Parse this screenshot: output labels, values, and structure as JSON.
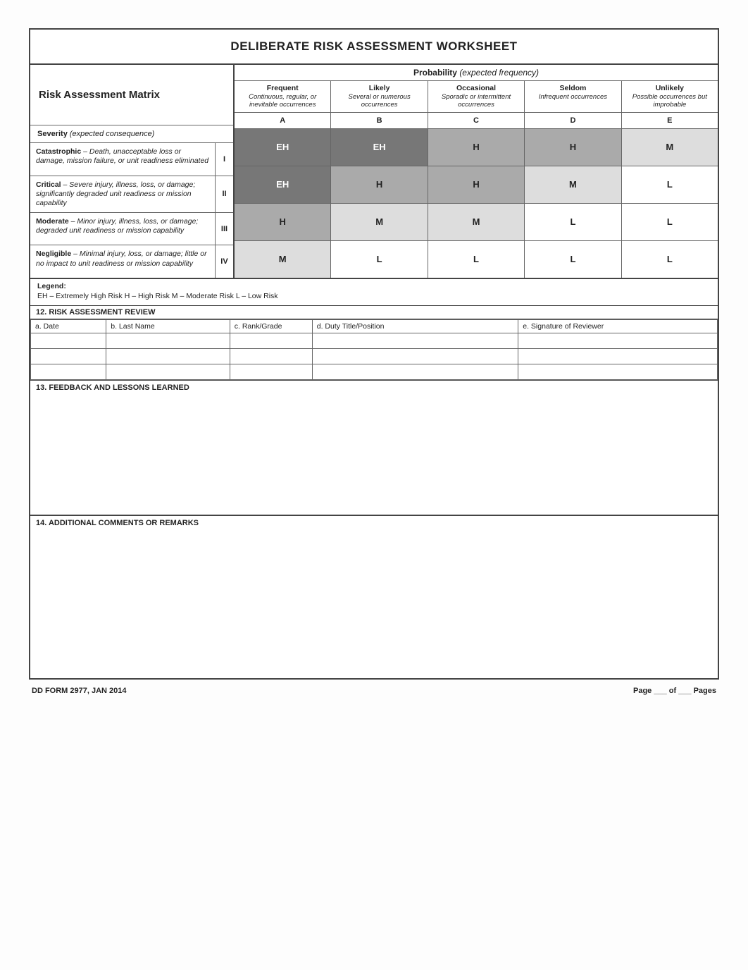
{
  "title": "DELIBERATE RISK ASSESSMENT WORKSHEET",
  "matrix": {
    "heading": "Risk Assessment Matrix",
    "probability": {
      "label": "Probability",
      "sub": "(expected frequency)",
      "columns": [
        {
          "label": "Frequent",
          "code": "A",
          "desc": "Continuous, regular, or inevitable occurrences"
        },
        {
          "label": "Likely",
          "code": "B",
          "desc": "Several or numerous occurrences"
        },
        {
          "label": "Occasional",
          "code": "C",
          "desc": "Sporadic or intermittent occurrences"
        },
        {
          "label": "Seldom",
          "code": "D",
          "desc": "Infrequent occurrences"
        },
        {
          "label": "Unlikely",
          "code": "E",
          "desc": "Possible occurrences but improbable"
        }
      ]
    },
    "severity": {
      "label": "Severity",
      "sub": "(expected consequence)",
      "rows": [
        {
          "label": "Catastrophic",
          "code": "I",
          "desc": "Death, unacceptable loss or damage, mission failure, or unit readiness eliminated"
        },
        {
          "label": "Critical",
          "code": "II",
          "desc": "Severe injury, illness, loss, or damage; significantly degraded unit readiness or mission capability"
        },
        {
          "label": "Moderate",
          "code": "III",
          "desc": "Minor injury, illness, loss, or damage; degraded unit readiness or mission capability"
        },
        {
          "label": "Negligible",
          "code": "IV",
          "desc": "Minimal injury, loss, or damage; little or no impact to unit readiness or mission capability"
        }
      ]
    },
    "grid": [
      [
        "EH",
        "EH",
        "H",
        "H",
        "M"
      ],
      [
        "EH",
        "H",
        "H",
        "M",
        "L"
      ],
      [
        "H",
        "M",
        "M",
        "L",
        "L"
      ],
      [
        "M",
        "L",
        "L",
        "L",
        "L"
      ]
    ],
    "levels": {
      "EH": "EH",
      "H": "H",
      "M": "M",
      "L": "L"
    }
  },
  "legend": {
    "header": "Legend:",
    "line": "EH – Extremely High Risk    H – High Risk    M – Moderate Risk    L – Low Risk"
  },
  "review": {
    "title": "12. RISK ASSESSMENT REVIEW",
    "columns": [
      "a. Date",
      "b. Last Name",
      "c. Rank/Grade",
      "d. Duty Title/Position",
      "e. Signature of Reviewer"
    ],
    "blank_rows": 3
  },
  "feedback": {
    "title": "13. FEEDBACK AND LESSONS LEARNED"
  },
  "remarks": {
    "title": "14. ADDITIONAL COMMENTS OR REMARKS"
  },
  "footer": {
    "left": "DD FORM 2977, JAN 2014",
    "right": "Page ___ of ___ Pages"
  },
  "colors": {
    "border": "#444444",
    "grid_border": "#666666",
    "eh_bg": "#777777",
    "h_bg": "#aaaaaa",
    "m_bg": "#dddddd",
    "l_bg": "#ffffff"
  }
}
